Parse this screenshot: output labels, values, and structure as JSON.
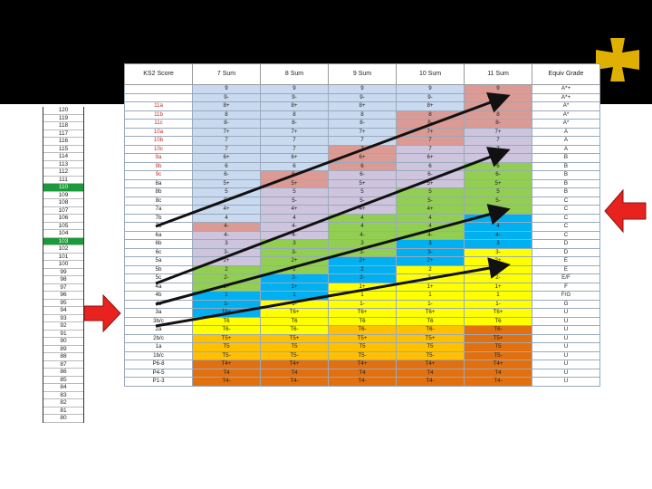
{
  "left_scale": [
    "120",
    "119",
    "118",
    "117",
    "116",
    "115",
    "114",
    "113",
    "112",
    "111",
    "110",
    "109",
    "108",
    "107",
    "106",
    "105",
    "104",
    "103",
    "102",
    "101",
    "100",
    "99",
    "98",
    "97",
    "96",
    "95",
    "94",
    "93",
    "92",
    "91",
    "90",
    "89",
    "88",
    "87",
    "86",
    "85",
    "84",
    "83",
    "82",
    "81",
    "80"
  ],
  "left_scale_highlight": [
    "110",
    "103"
  ],
  "table": {
    "headers": [
      "KS2 Score",
      "7 Sum",
      "8 Sum",
      "9 Sum",
      "10 Sum",
      "11 Sum",
      "Equiv Grade"
    ],
    "rows": [
      {
        "ks": "",
        "v": [
          "9",
          "9",
          "9",
          "9",
          "9"
        ],
        "g": "A*+",
        "c": [
          "blue",
          "blue",
          "blue",
          "blue",
          "pink"
        ]
      },
      {
        "ks": "",
        "v": [
          "9-",
          "9-",
          "9-",
          "9-",
          "9-"
        ],
        "g": "A*+",
        "c": [
          "blue",
          "blue",
          "blue",
          "blue",
          "pink"
        ]
      },
      {
        "ks": "11a",
        "v": [
          "8+",
          "8+",
          "8+",
          "8+",
          "8+"
        ],
        "g": "A*",
        "c": [
          "blue",
          "blue",
          "blue",
          "blue",
          "pink"
        ]
      },
      {
        "ks": "11b",
        "v": [
          "8",
          "8",
          "8",
          "8",
          "8"
        ],
        "g": "A*",
        "c": [
          "blue",
          "blue",
          "blue",
          "pink",
          "pink"
        ]
      },
      {
        "ks": "11c",
        "v": [
          "8-",
          "8-",
          "8-",
          "8-",
          "8-"
        ],
        "g": "A*",
        "c": [
          "blue",
          "blue",
          "blue",
          "pink",
          "pink"
        ]
      },
      {
        "ks": "10a",
        "v": [
          "7+",
          "7+",
          "7+",
          "7+",
          "7+"
        ],
        "g": "A",
        "c": [
          "blue",
          "blue",
          "blue",
          "pink",
          "lav"
        ]
      },
      {
        "ks": "10b",
        "v": [
          "7",
          "7",
          "7",
          "7",
          "7"
        ],
        "g": "A",
        "c": [
          "blue",
          "blue",
          "blue",
          "pink",
          "lav"
        ]
      },
      {
        "ks": "10c",
        "v": [
          "7",
          "7",
          "7",
          "7",
          "7"
        ],
        "g": "A",
        "c": [
          "blue",
          "blue",
          "pink",
          "lav",
          "lav"
        ]
      },
      {
        "ks": "9a",
        "v": [
          "6+",
          "6+",
          "6+",
          "6+",
          "6+"
        ],
        "g": "B",
        "c": [
          "blue",
          "blue",
          "pink",
          "lav",
          "lav"
        ]
      },
      {
        "ks": "9b",
        "v": [
          "6",
          "6",
          "6",
          "6",
          "6"
        ],
        "g": "B",
        "c": [
          "blue",
          "blue",
          "pink",
          "lav",
          "green"
        ]
      },
      {
        "ks": "9c",
        "v": [
          "6-",
          "6-",
          "6-",
          "6-",
          "6-"
        ],
        "g": "B",
        "c": [
          "blue",
          "pink",
          "lav",
          "lav",
          "green"
        ]
      },
      {
        "ks": "8a",
        "v": [
          "5+",
          "5+",
          "5+",
          "5+",
          "5+"
        ],
        "g": "B",
        "c": [
          "blue",
          "pink",
          "lav",
          "lav",
          "green"
        ]
      },
      {
        "ks": "8b",
        "v": [
          "5",
          "5",
          "5",
          "5",
          "5"
        ],
        "g": "B",
        "c": [
          "blue",
          "lav",
          "lav",
          "green",
          "green"
        ]
      },
      {
        "ks": "8c",
        "v": [
          "5-",
          "5-",
          "5-",
          "5-",
          "5-"
        ],
        "g": "C",
        "c": [
          "blue",
          "lav",
          "lav",
          "green",
          "green"
        ]
      },
      {
        "ks": "7a",
        "v": [
          "4+",
          "4+",
          "4+",
          "4+",
          "4+"
        ],
        "g": "C",
        "c": [
          "blue",
          "lav",
          "lav",
          "green",
          "green"
        ]
      },
      {
        "ks": "7b",
        "v": [
          "4",
          "4",
          "4",
          "4",
          "4"
        ],
        "g": "C",
        "c": [
          "blue",
          "lav",
          "green",
          "green",
          "cyan"
        ]
      },
      {
        "ks": "7c",
        "v": [
          "4-",
          "4-",
          "4",
          "4",
          "4"
        ],
        "g": "C",
        "c": [
          "pink",
          "lav",
          "green",
          "green",
          "cyan"
        ]
      },
      {
        "ks": "6a",
        "v": [
          "4-",
          "4-",
          "4-",
          "4-",
          "4-"
        ],
        "g": "C",
        "c": [
          "lav",
          "lav",
          "green",
          "green",
          "cyan"
        ]
      },
      {
        "ks": "6b",
        "v": [
          "3",
          "3",
          "3",
          "3",
          "3"
        ],
        "g": "D",
        "c": [
          "lav",
          "green",
          "green",
          "cyan",
          "cyan"
        ]
      },
      {
        "ks": "6c",
        "v": [
          "3-",
          "3-",
          "3-",
          "3-",
          "3-"
        ],
        "g": "D",
        "c": [
          "lav",
          "green",
          "green",
          "cyan",
          "yellow"
        ]
      },
      {
        "ks": "5a",
        "v": [
          "2+",
          "2+",
          "2+",
          "2+",
          "2+"
        ],
        "g": "E",
        "c": [
          "lav",
          "green",
          "cyan",
          "cyan",
          "yellow"
        ]
      },
      {
        "ks": "5b",
        "v": [
          "2",
          "2",
          "2",
          "2",
          "2"
        ],
        "g": "E",
        "c": [
          "green",
          "green",
          "cyan",
          "yellow",
          "yellow"
        ]
      },
      {
        "ks": "5c",
        "v": [
          "2-",
          "2-",
          "2-",
          "2-",
          "2-"
        ],
        "g": "E/F",
        "c": [
          "green",
          "cyan",
          "cyan",
          "yellow",
          "yellow"
        ]
      },
      {
        "ks": "4a",
        "v": [
          "1+",
          "1+",
          "1+",
          "1+",
          "1+"
        ],
        "g": "F",
        "c": [
          "green",
          "cyan",
          "yellow",
          "yellow",
          "yellow"
        ]
      },
      {
        "ks": "4b",
        "v": [
          "1",
          "1",
          "1",
          "1",
          "1"
        ],
        "g": "F/G",
        "c": [
          "cyan",
          "cyan",
          "yellow",
          "yellow",
          "yellow"
        ]
      },
      {
        "ks": "4c",
        "v": [
          "1-",
          "1-",
          "1-",
          "1-",
          "1-"
        ],
        "g": "G",
        "c": [
          "cyan",
          "yellow",
          "yellow",
          "yellow",
          "yellow"
        ]
      },
      {
        "ks": "3a",
        "v": [
          "T6+",
          "T6+",
          "T6+",
          "T6+",
          "T6+"
        ],
        "g": "U",
        "c": [
          "cyan",
          "yellow",
          "yellow",
          "yellow",
          "yellow"
        ]
      },
      {
        "ks": "3b/c",
        "v": [
          "T6",
          "T6",
          "T6",
          "T6",
          "T6"
        ],
        "g": "U",
        "c": [
          "yellow",
          "yellow",
          "yellow",
          "yellow",
          "yellow"
        ]
      },
      {
        "ks": "2a",
        "v": [
          "T6-",
          "T6-",
          "T6-",
          "T6-",
          "T6-"
        ],
        "g": "U",
        "c": [
          "yellow",
          "yellow",
          "gold",
          "gold",
          "orange"
        ]
      },
      {
        "ks": "2b/c",
        "v": [
          "T5+",
          "T5+",
          "T5+",
          "T5+",
          "T5+"
        ],
        "g": "U",
        "c": [
          "gold",
          "gold",
          "gold",
          "gold",
          "orange"
        ]
      },
      {
        "ks": "1a",
        "v": [
          "T5",
          "T5",
          "T5",
          "T5",
          "T5"
        ],
        "g": "U",
        "c": [
          "gold",
          "gold",
          "gold",
          "gold",
          "orange"
        ]
      },
      {
        "ks": "1b/c",
        "v": [
          "T5-",
          "T5-",
          "T5-",
          "T5-",
          "T5-"
        ],
        "g": "U",
        "c": [
          "gold",
          "gold",
          "gold",
          "gold",
          "orange"
        ]
      },
      {
        "ks": "P6-8",
        "v": [
          "T4+",
          "T4+",
          "T4+",
          "T4+",
          "T4+"
        ],
        "g": "U",
        "c": [
          "orange",
          "orange",
          "orange",
          "orange",
          "orange"
        ]
      },
      {
        "ks": "P4-5",
        "v": [
          "T4",
          "T4",
          "T4",
          "T4",
          "T4"
        ],
        "g": "U",
        "c": [
          "orange",
          "orange",
          "orange",
          "orange",
          "orange"
        ]
      },
      {
        "ks": "P1-3",
        "v": [
          "T4-",
          "T4-",
          "T4-",
          "T4-",
          "T4-"
        ],
        "g": "U",
        "c": [
          "orange",
          "orange",
          "orange",
          "orange",
          "orange"
        ]
      }
    ]
  },
  "red_ks_rows": [
    "11a",
    "11b",
    "11c",
    "10a",
    "10b",
    "10c",
    "9a",
    "9b",
    "9c"
  ],
  "colors": {
    "blue": "#c9d9ef",
    "pink": "#dc9a94",
    "lav": "#cec4dd",
    "green": "#92cf50",
    "cyan": "#00b0f0",
    "yellow": "#ffff00",
    "gold": "#ffc000",
    "orange": "#e3700e",
    "arrow_red": "#e8231f",
    "highlight_green": "#1a9a3a",
    "cross_gold": "#e0b000"
  },
  "icons": {
    "corner": "cross-icon",
    "left_arrow": "red-arrow-right-icon",
    "right_arrow": "red-arrow-left-icon"
  }
}
